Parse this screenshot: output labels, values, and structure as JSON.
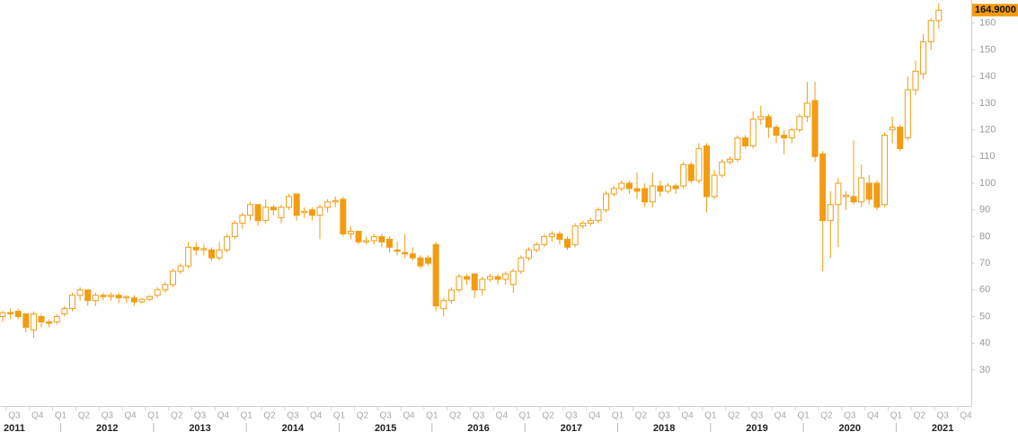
{
  "chart_data": {
    "type": "candlestick",
    "color": "#f39c12",
    "open": [
      50,
      51.5,
      52,
      51,
      45,
      50,
      48,
      48,
      51,
      53,
      58,
      60,
      56,
      58,
      57.5,
      58,
      57,
      57,
      55.5,
      56.5,
      58,
      60,
      62,
      67,
      69,
      76,
      75,
      75,
      72,
      75,
      80,
      85,
      88,
      92,
      86,
      91,
      87,
      91,
      96,
      89,
      90,
      88,
      91,
      93,
      94,
      81,
      82,
      78,
      78.5,
      80,
      79,
      75,
      74,
      73.5,
      72,
      72,
      77,
      53,
      56,
      60,
      65,
      66,
      60,
      64,
      65,
      64,
      62,
      67,
      72,
      75,
      77,
      80,
      81,
      79,
      77,
      84,
      85,
      86,
      90,
      96,
      98,
      100,
      98,
      98,
      93,
      99,
      97,
      99,
      99,
      107,
      101,
      114,
      95,
      103,
      108,
      109,
      117,
      114,
      124,
      125,
      121,
      118,
      117,
      120,
      125,
      131,
      111,
      86,
      92,
      95,
      95,
      93,
      100,
      100,
      92,
      120,
      121,
      117,
      135,
      141,
      153,
      161
    ],
    "high": [
      52,
      53,
      53,
      51,
      52,
      51,
      49,
      51,
      54,
      59,
      61,
      60,
      59,
      59,
      59,
      59,
      58,
      58,
      57,
      58,
      61,
      63,
      68,
      70,
      78,
      78,
      77,
      76,
      78,
      81,
      86,
      89,
      93,
      92,
      94,
      92,
      92,
      96,
      96,
      91,
      91,
      92,
      94,
      95,
      95,
      84,
      82,
      80,
      81,
      81,
      80,
      78,
      81,
      76,
      73,
      73,
      78,
      57,
      61,
      66,
      66,
      66,
      65,
      66,
      66,
      67,
      68,
      73,
      76,
      78,
      81,
      82,
      82,
      80,
      85,
      86,
      87,
      91,
      97,
      99,
      101,
      101,
      104,
      100,
      104,
      101,
      100,
      100,
      108,
      108,
      115,
      115,
      105,
      109,
      110,
      118,
      118,
      127,
      129,
      126,
      122,
      120,
      121,
      126,
      138,
      138,
      112,
      97,
      102,
      97,
      116,
      107,
      103,
      101,
      119,
      125,
      122,
      140,
      146,
      156,
      162,
      167.5
    ],
    "low": [
      48,
      49,
      49,
      44,
      42,
      46,
      46,
      47,
      50,
      52,
      56,
      54,
      54,
      56,
      56,
      55,
      55,
      54,
      55,
      56,
      57,
      59,
      61,
      66,
      68,
      73,
      73,
      71,
      71,
      74,
      79,
      83,
      86,
      84,
      85,
      88,
      85,
      90,
      86,
      87,
      86,
      79,
      89,
      91,
      80,
      79,
      77,
      77,
      77,
      76,
      74,
      73,
      72,
      71,
      68,
      69,
      52,
      50,
      55,
      59,
      62,
      57,
      58,
      63,
      62,
      62,
      59,
      66,
      71,
      74,
      76,
      78,
      77,
      75,
      76,
      83,
      84,
      85,
      89,
      95,
      97,
      96,
      94,
      91,
      91,
      95,
      96,
      96,
      98,
      100,
      100,
      89,
      94,
      102,
      107,
      108,
      113,
      113,
      122,
      117,
      115,
      111,
      115,
      119,
      123,
      108,
      67,
      72,
      76,
      90,
      92,
      91,
      92,
      90,
      91,
      115,
      112,
      116,
      133,
      139,
      150,
      158
    ],
    "close": [
      51.5,
      51,
      50,
      46,
      51,
      48,
      47.5,
      50,
      53,
      58,
      60,
      56,
      58,
      57.5,
      58,
      57,
      57.5,
      55.5,
      56.5,
      57.5,
      60,
      62,
      67,
      69,
      76,
      75,
      75.5,
      72,
      75,
      80,
      85,
      88,
      92,
      86,
      91,
      90,
      91,
      95,
      88,
      89.5,
      88,
      91,
      93,
      93.5,
      81,
      82,
      78,
      78.5,
      80,
      78,
      76,
      74.5,
      73.5,
      72,
      69,
      70,
      54,
      56,
      60,
      65,
      64,
      60,
      64,
      65,
      64,
      66,
      67,
      72,
      75,
      77,
      80,
      81,
      79,
      76,
      84,
      85,
      86,
      90,
      96,
      98,
      100,
      98,
      97,
      93,
      99,
      97,
      99,
      98,
      107,
      101,
      113,
      95,
      103,
      108,
      109,
      117,
      114,
      124,
      125,
      121,
      118,
      117,
      120,
      125,
      130,
      110,
      86,
      92,
      100,
      95.5,
      93,
      102,
      94,
      91,
      118,
      121,
      113,
      135,
      142,
      153,
      161,
      164.9
    ],
    "last_label": "164.9000",
    "ylim": [
      16.5,
      168.7
    ],
    "yticks": [
      30,
      40,
      50,
      60,
      70,
      80,
      90,
      100,
      110,
      120,
      130,
      140,
      150,
      160
    ],
    "quarters": [
      "Q3",
      "Q4",
      "Q1",
      "Q2",
      "Q3",
      "Q4",
      "Q1",
      "Q2",
      "Q3",
      "Q4",
      "Q1",
      "Q2",
      "Q3",
      "Q4",
      "Q1",
      "Q2",
      "Q3",
      "Q4",
      "Q1",
      "Q2",
      "Q3",
      "Q4",
      "Q1",
      "Q2",
      "Q3",
      "Q4",
      "Q1",
      "Q2",
      "Q3",
      "Q4",
      "Q1",
      "Q2",
      "Q3",
      "Q4",
      "Q1",
      "Q2",
      "Q3",
      "Q4",
      "Q1",
      "Q2",
      "Q3",
      "Q4"
    ],
    "years": [
      "2011",
      "2012",
      "2013",
      "2014",
      "2015",
      "2016",
      "2017",
      "2018",
      "2019",
      "2020",
      "2021"
    ]
  }
}
